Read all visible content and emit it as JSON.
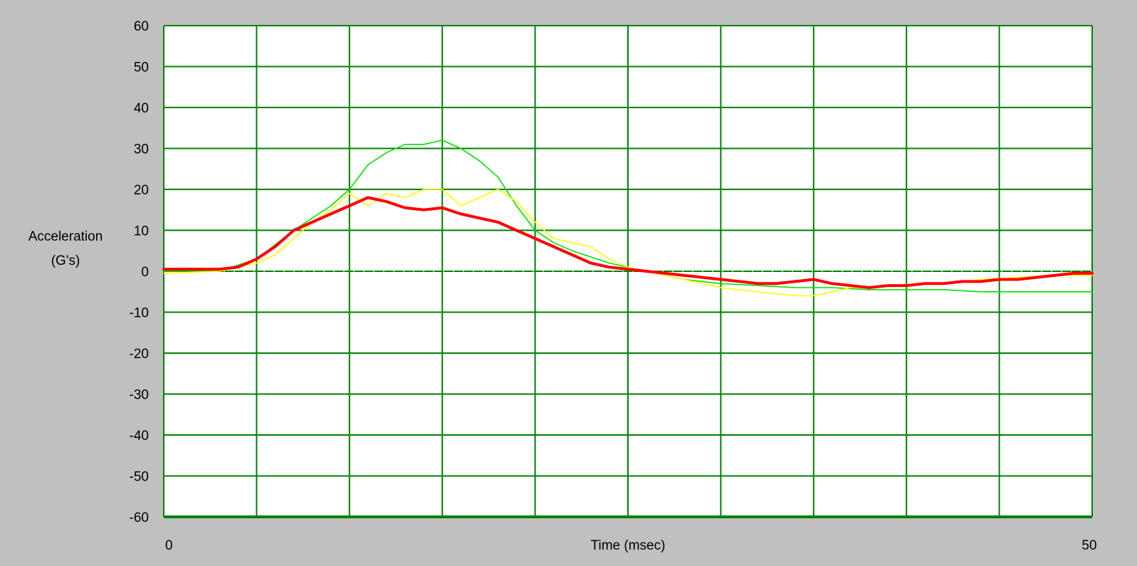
{
  "chart_data": {
    "type": "line",
    "title": "",
    "xlabel": "Time (msec)",
    "ylabel_lines": [
      "Acceleration",
      "(G's)"
    ],
    "xlim": [
      0,
      50
    ],
    "ylim": [
      -60,
      60
    ],
    "x_tick_labels": [
      {
        "value": 0,
        "label": "0"
      },
      {
        "value": 50,
        "label": "50"
      }
    ],
    "y_ticks": [
      60,
      50,
      40,
      30,
      20,
      10,
      0,
      -10,
      -20,
      -30,
      -40,
      -50,
      -60
    ],
    "grid": {
      "x_step": 5,
      "y_step": 10,
      "color": "#008000"
    },
    "legend": "none",
    "series": [
      {
        "color": "#00e000",
        "width": 1.6,
        "points": [
          [
            0,
            0
          ],
          [
            3,
            0
          ],
          [
            5,
            3
          ],
          [
            7,
            10
          ],
          [
            9,
            16
          ],
          [
            10,
            20
          ],
          [
            11,
            26
          ],
          [
            12,
            29
          ],
          [
            13,
            31
          ],
          [
            14,
            31
          ],
          [
            15,
            32
          ],
          [
            16,
            30
          ],
          [
            17,
            27
          ],
          [
            18,
            23
          ],
          [
            19,
            16
          ],
          [
            20,
            10
          ],
          [
            21,
            7
          ],
          [
            22,
            5
          ],
          [
            24,
            2
          ],
          [
            26,
            0
          ],
          [
            28,
            -2
          ],
          [
            30,
            -3
          ],
          [
            32,
            -3.5
          ],
          [
            34,
            -4
          ],
          [
            36,
            -4
          ],
          [
            38,
            -4.5
          ],
          [
            40,
            -4.5
          ],
          [
            42,
            -4.5
          ],
          [
            44,
            -5
          ],
          [
            46,
            -5
          ],
          [
            48,
            -5
          ],
          [
            50,
            -5
          ]
        ]
      },
      {
        "color": "#ffff00",
        "width": 1.6,
        "points": [
          [
            0,
            -0.5
          ],
          [
            3,
            0
          ],
          [
            5,
            2
          ],
          [
            6,
            4
          ],
          [
            7,
            8
          ],
          [
            8,
            12
          ],
          [
            9,
            15
          ],
          [
            10,
            19
          ],
          [
            11,
            16
          ],
          [
            12,
            19
          ],
          [
            13,
            18
          ],
          [
            14,
            20
          ],
          [
            15,
            20
          ],
          [
            16,
            16
          ],
          [
            17,
            18
          ],
          [
            18,
            20
          ],
          [
            19,
            17
          ],
          [
            20,
            12
          ],
          [
            21,
            8
          ],
          [
            22,
            7
          ],
          [
            23,
            6
          ],
          [
            24,
            3
          ],
          [
            25,
            1
          ],
          [
            26,
            0
          ],
          [
            27,
            -1
          ],
          [
            28,
            -2
          ],
          [
            29,
            -3
          ],
          [
            30,
            -4
          ],
          [
            32,
            -5
          ],
          [
            34,
            -6
          ],
          [
            35,
            -6
          ],
          [
            36,
            -5
          ],
          [
            37,
            -4
          ],
          [
            38,
            -4
          ],
          [
            40,
            -3.5
          ],
          [
            42,
            -3
          ],
          [
            44,
            -2
          ],
          [
            46,
            -1.5
          ],
          [
            48,
            -1
          ],
          [
            50,
            -1
          ]
        ]
      },
      {
        "color": "#ff0000",
        "width": 4,
        "points": [
          [
            0,
            0.5
          ],
          [
            3,
            0.5
          ],
          [
            4,
            1
          ],
          [
            5,
            3
          ],
          [
            6,
            6
          ],
          [
            7,
            10
          ],
          [
            8,
            12
          ],
          [
            9,
            14
          ],
          [
            10,
            16
          ],
          [
            11,
            18
          ],
          [
            12,
            17
          ],
          [
            13,
            15.5
          ],
          [
            14,
            15
          ],
          [
            15,
            15.5
          ],
          [
            16,
            14
          ],
          [
            17,
            13
          ],
          [
            18,
            12
          ],
          [
            19,
            10
          ],
          [
            20,
            8
          ],
          [
            21,
            6
          ],
          [
            22,
            4
          ],
          [
            23,
            2
          ],
          [
            24,
            1
          ],
          [
            25,
            0.5
          ],
          [
            26,
            0
          ],
          [
            27,
            -0.5
          ],
          [
            28,
            -1
          ],
          [
            29,
            -1.5
          ],
          [
            30,
            -2
          ],
          [
            31,
            -2.5
          ],
          [
            32,
            -3
          ],
          [
            33,
            -3
          ],
          [
            34,
            -2.5
          ],
          [
            35,
            -2
          ],
          [
            36,
            -3
          ],
          [
            37,
            -3.5
          ],
          [
            38,
            -4
          ],
          [
            39,
            -3.5
          ],
          [
            40,
            -3.5
          ],
          [
            41,
            -3
          ],
          [
            42,
            -3
          ],
          [
            43,
            -2.5
          ],
          [
            44,
            -2.5
          ],
          [
            45,
            -2
          ],
          [
            46,
            -2
          ],
          [
            47,
            -1.5
          ],
          [
            48,
            -1
          ],
          [
            49,
            -0.5
          ],
          [
            50,
            -0.5
          ]
        ]
      }
    ]
  }
}
